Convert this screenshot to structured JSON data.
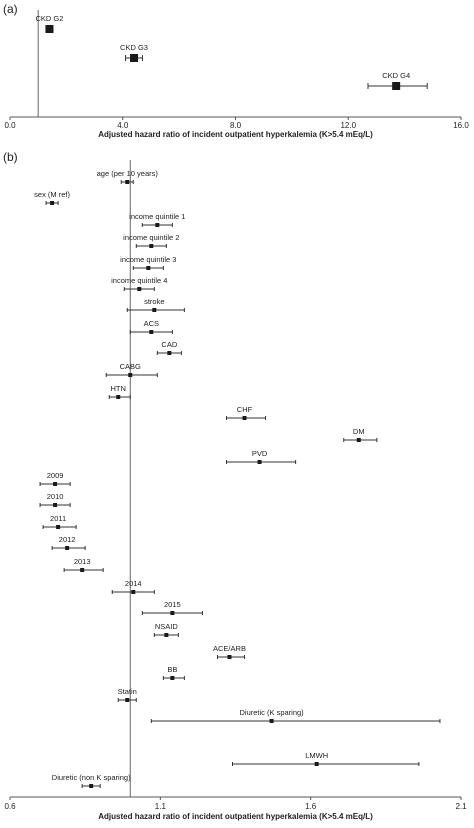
{
  "panel_a_label": "(a)",
  "panel_b_label": "(b)",
  "chart_data": [
    {
      "type": "scatter",
      "subtype": "forest-plot",
      "title": "",
      "xlabel": "Adjusted hazard ratio of incident outpatient hyperkalemia (K>5.4 mEq/L)",
      "ylabel": "",
      "xlim": [
        0.0,
        16.0
      ],
      "xticks": [
        "0.0",
        "4.0",
        "8.0",
        "12.0",
        "16.0"
      ],
      "xtick_values": [
        0.0,
        4.0,
        8.0,
        12.0,
        16.0
      ],
      "reference_line": 1.0,
      "grid": false,
      "points": [
        {
          "label": "CKD  G2",
          "value": 1.4,
          "ci": [
            1.3,
            1.5
          ]
        },
        {
          "label": "CKD G3",
          "value": 4.4,
          "ci": [
            4.1,
            4.7
          ]
        },
        {
          "label": "CKD G4",
          "value": 13.7,
          "ci": [
            12.7,
            14.8
          ]
        }
      ]
    },
    {
      "type": "scatter",
      "subtype": "forest-plot",
      "title": "",
      "xlabel": "Adjusted hazard ratio of incident outpatient hyperkalemia (K>5.4 mEq/L)",
      "ylabel": "",
      "xlim": [
        0.6,
        2.1
      ],
      "xticks": [
        "0.6",
        "1.1",
        "1.6",
        "2.1"
      ],
      "xtick_values": [
        0.6,
        1.1,
        1.6,
        2.1
      ],
      "reference_line": 1.0,
      "grid": false,
      "points": [
        {
          "label": "age (per 10 years)",
          "value": 0.99,
          "ci": [
            0.97,
            1.01
          ]
        },
        {
          "label": "sex (M ref)",
          "value": 0.74,
          "ci": [
            0.72,
            0.76
          ]
        },
        {
          "label": "income quintile 1",
          "value": 1.09,
          "ci": [
            1.04,
            1.14
          ]
        },
        {
          "label": "income quintile 2",
          "value": 1.07,
          "ci": [
            1.02,
            1.12
          ]
        },
        {
          "label": "income quintile 3",
          "value": 1.06,
          "ci": [
            1.01,
            1.11
          ]
        },
        {
          "label": "income quintile 4",
          "value": 1.03,
          "ci": [
            0.98,
            1.08
          ]
        },
        {
          "label": "stroke",
          "value": 1.08,
          "ci": [
            0.99,
            1.18
          ]
        },
        {
          "label": "ACS",
          "value": 1.07,
          "ci": [
            1.0,
            1.14
          ]
        },
        {
          "label": "CAD",
          "value": 1.13,
          "ci": [
            1.09,
            1.17
          ]
        },
        {
          "label": "CABG",
          "value": 1.0,
          "ci": [
            0.92,
            1.09
          ]
        },
        {
          "label": "HTN",
          "value": 0.96,
          "ci": [
            0.93,
            1.0
          ]
        },
        {
          "label": "CHF",
          "value": 1.38,
          "ci": [
            1.32,
            1.45
          ]
        },
        {
          "label": "DM",
          "value": 1.76,
          "ci": [
            1.71,
            1.82
          ]
        },
        {
          "label": "PVD",
          "value": 1.43,
          "ci": [
            1.32,
            1.55
          ]
        },
        {
          "label": "2009",
          "value": 0.75,
          "ci": [
            0.7,
            0.8
          ]
        },
        {
          "label": "2010",
          "value": 0.75,
          "ci": [
            0.7,
            0.8
          ]
        },
        {
          "label": "2011",
          "value": 0.76,
          "ci": [
            0.71,
            0.82
          ]
        },
        {
          "label": "2012",
          "value": 0.79,
          "ci": [
            0.74,
            0.85
          ]
        },
        {
          "label": "2013",
          "value": 0.84,
          "ci": [
            0.78,
            0.91
          ]
        },
        {
          "label": "2014",
          "value": 1.01,
          "ci": [
            0.94,
            1.08
          ]
        },
        {
          "label": "2015",
          "value": 1.14,
          "ci": [
            1.04,
            1.24
          ]
        },
        {
          "label": "NSAID",
          "value": 1.12,
          "ci": [
            1.08,
            1.16
          ]
        },
        {
          "label": "ACE/ARB",
          "value": 1.33,
          "ci": [
            1.29,
            1.38
          ]
        },
        {
          "label": "BB",
          "value": 1.14,
          "ci": [
            1.11,
            1.18
          ]
        },
        {
          "label": "Statin",
          "value": 0.99,
          "ci": [
            0.96,
            1.02
          ]
        },
        {
          "label": "Diuretic (K sparing)",
          "value": 1.47,
          "ci": [
            1.07,
            2.03
          ]
        },
        {
          "label": "LMWH",
          "value": 1.62,
          "ci": [
            1.34,
            1.96
          ]
        },
        {
          "label": "Diuretic (non K sparing)",
          "value": 0.87,
          "ci": [
            0.84,
            0.9
          ]
        }
      ]
    }
  ]
}
